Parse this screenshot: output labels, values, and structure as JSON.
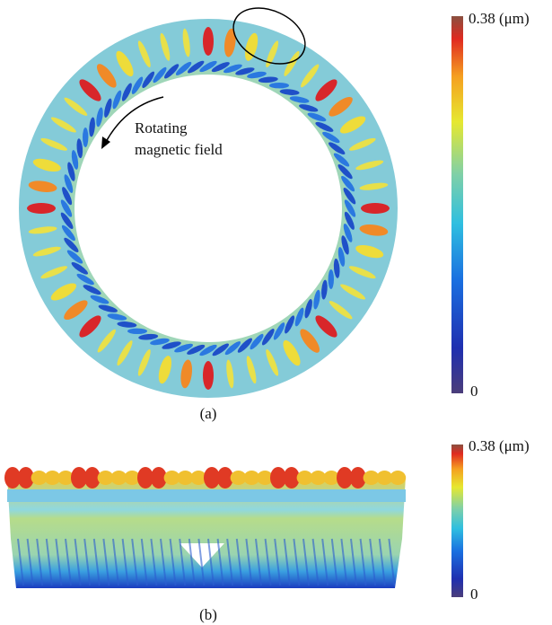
{
  "panel_a": {
    "annotation": [
      "Rotating",
      "magnetic field"
    ],
    "colorbar": {
      "max_label": "0.38 (μm)",
      "min_label": "0"
    },
    "caption": "(a)"
  },
  "panel_b": {
    "colorbar": {
      "max_label": "0.38 (μm)",
      "min_label": "0"
    },
    "caption": "(b)"
  }
}
